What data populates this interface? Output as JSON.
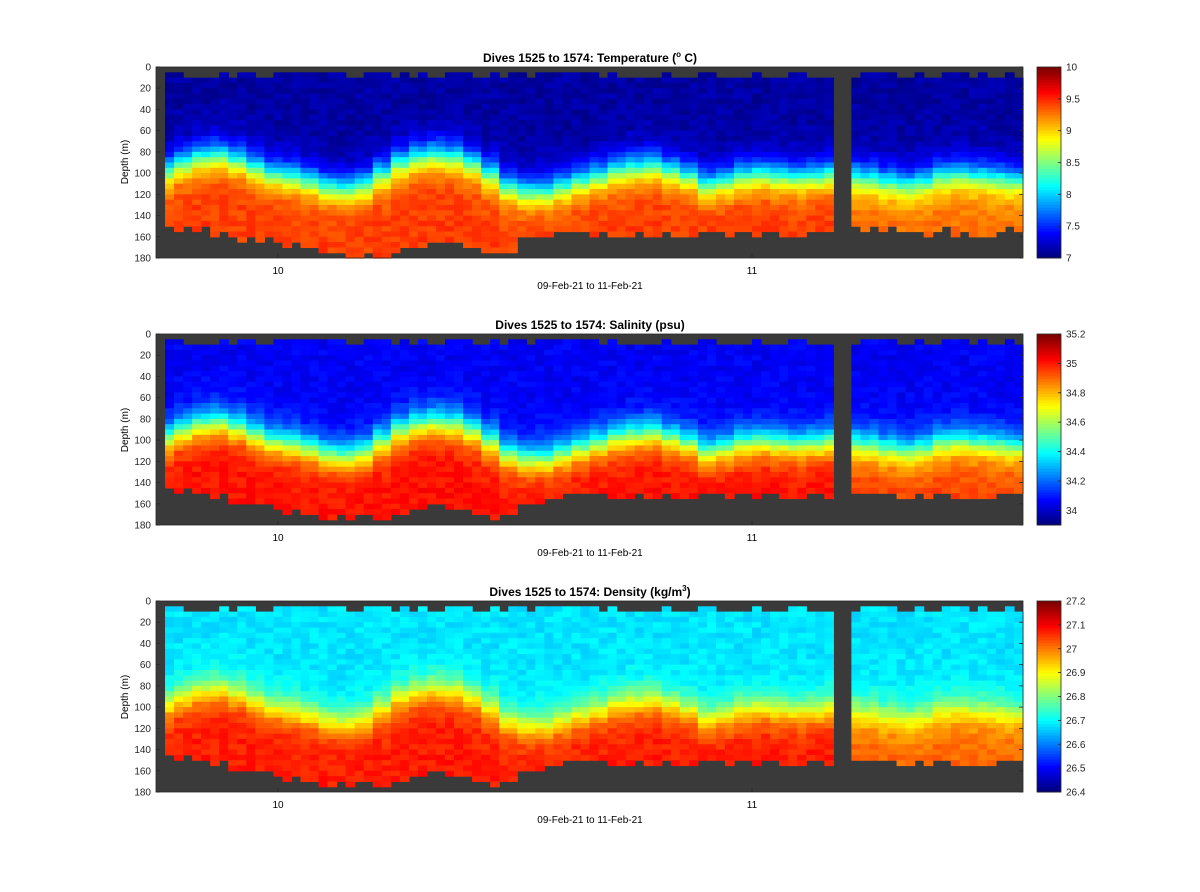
{
  "figure": {
    "shared_xlabel": "09-Feb-21 to 11-Feb-21",
    "depth_ylabel": "Depth (m)",
    "no_data_color": "#3a3a3a",
    "colormap": "jet"
  },
  "chart_data": [
    {
      "type": "heatmap",
      "title": "Dives 1525 to 1574: Temperature (°C)",
      "title_main": "Dives 1525 to 1574: Temperature (",
      "title_sup": "o",
      "title_tail": " C)",
      "xlabel": "09-Feb-21 to 11-Feb-21",
      "ylabel": "Depth (m)",
      "x_ticks": [
        "10",
        "11"
      ],
      "y_ticks": [
        "0",
        "20",
        "40",
        "60",
        "80",
        "100",
        "120",
        "140",
        "160",
        "180"
      ],
      "ylim": [
        0,
        180
      ],
      "clim": [
        7,
        10
      ],
      "colorbar_ticks": [
        "7",
        "7.5",
        "8",
        "8.5",
        "9",
        "9.5",
        "10"
      ],
      "surface_value": 7.1,
      "deep_value": 9.45,
      "deep_value_late": 9.3,
      "thermocline_depth": [
        95,
        88,
        82,
        80,
        85,
        92,
        98,
        100,
        105,
        110,
        112,
        108,
        98,
        88,
        82,
        80,
        82,
        88,
        98,
        110,
        115,
        115,
        110,
        105,
        100,
        95,
        92,
        90,
        95,
        100,
        108,
        105,
        100,
        98,
        100,
        102,
        100,
        98,
        100,
        102,
        105,
        108,
        105,
        100,
        98,
        100,
        102,
        104
      ],
      "bottom_depth": [
        150,
        150,
        150,
        155,
        158,
        160,
        162,
        164,
        168,
        172,
        176,
        178,
        175,
        172,
        168,
        164,
        165,
        168,
        172,
        175,
        160,
        158,
        156,
        156,
        156,
        156,
        155,
        155,
        155,
        155,
        155,
        155,
        155,
        155,
        155,
        155,
        153,
        153,
        153,
        153,
        153,
        153,
        153,
        153,
        153,
        153,
        153,
        153
      ]
    },
    {
      "type": "heatmap",
      "title": "Dives 1525 to 1574: Salinity (psu)",
      "title_main": "Dives 1525 to 1574: Salinity (psu)",
      "title_sup": "",
      "title_tail": "",
      "xlabel": "09-Feb-21 to 11-Feb-21",
      "ylabel": "Depth (m)",
      "x_ticks": [
        "10",
        "11"
      ],
      "y_ticks": [
        "0",
        "20",
        "40",
        "60",
        "80",
        "100",
        "120",
        "140",
        "160",
        "180"
      ],
      "ylim": [
        0,
        180
      ],
      "clim": [
        33.9,
        35.2
      ],
      "colorbar_ticks": [
        "34",
        "34.2",
        "34.4",
        "34.6",
        "34.8",
        "35",
        "35.2"
      ],
      "surface_value": 34.05,
      "deep_value": 35.02,
      "deep_value_late": 34.95,
      "thermocline_depth": [
        95,
        88,
        82,
        80,
        85,
        92,
        98,
        100,
        105,
        110,
        112,
        108,
        98,
        88,
        82,
        80,
        82,
        88,
        98,
        110,
        115,
        115,
        110,
        105,
        100,
        95,
        92,
        90,
        95,
        100,
        108,
        105,
        100,
        98,
        100,
        102,
        100,
        98,
        100,
        102,
        105,
        108,
        105,
        100,
        98,
        100,
        102,
        104
      ],
      "bottom_depth": [
        145,
        145,
        148,
        150,
        155,
        158,
        162,
        165,
        168,
        170,
        172,
        172,
        170,
        168,
        165,
        162,
        163,
        165,
        168,
        170,
        158,
        155,
        152,
        150,
        150,
        150,
        150,
        150,
        150,
        150,
        150,
        150,
        150,
        150,
        150,
        150,
        150,
        150,
        150,
        150,
        150,
        150,
        150,
        150,
        150,
        150,
        150,
        150
      ]
    },
    {
      "type": "heatmap",
      "title": "Dives 1525 to 1574: Density (kg/m³)",
      "title_main": "Dives 1525 to 1574: Density (kg/m",
      "title_sup": "3",
      "title_tail": ")",
      "xlabel": "09-Feb-21 to 11-Feb-21",
      "ylabel": "Depth (m)",
      "x_ticks": [
        "10",
        "11"
      ],
      "y_ticks": [
        "0",
        "20",
        "40",
        "60",
        "80",
        "100",
        "120",
        "140",
        "160",
        "180"
      ],
      "ylim": [
        0,
        180
      ],
      "clim": [
        26.4,
        27.2
      ],
      "colorbar_ticks": [
        "26.4",
        "26.5",
        "26.6",
        "26.7",
        "26.8",
        "26.9",
        "27",
        "27.1",
        "27.2"
      ],
      "surface_value": 26.68,
      "deep_value": 27.08,
      "deep_value_late": 27.02,
      "thermocline_depth": [
        95,
        88,
        82,
        80,
        85,
        92,
        98,
        100,
        105,
        110,
        112,
        108,
        98,
        88,
        82,
        80,
        82,
        88,
        98,
        110,
        115,
        115,
        110,
        105,
        100,
        95,
        92,
        90,
        95,
        100,
        108,
        105,
        100,
        98,
        100,
        102,
        100,
        98,
        100,
        102,
        105,
        108,
        105,
        100,
        98,
        100,
        102,
        104
      ],
      "bottom_depth": [
        145,
        145,
        148,
        150,
        155,
        158,
        162,
        165,
        168,
        170,
        172,
        172,
        170,
        168,
        165,
        162,
        163,
        165,
        168,
        170,
        158,
        155,
        152,
        150,
        150,
        150,
        150,
        150,
        150,
        150,
        150,
        150,
        150,
        150,
        150,
        150,
        150,
        150,
        150,
        150,
        150,
        150,
        150,
        150,
        150,
        150,
        150,
        150
      ]
    }
  ]
}
